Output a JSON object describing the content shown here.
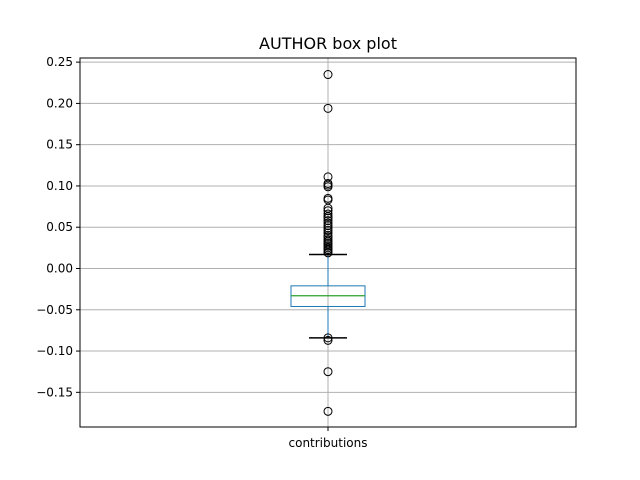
{
  "chart_data": {
    "type": "box",
    "title": "AUTHOR box plot",
    "xlabel": "",
    "ylabel": "",
    "categories": [
      "contributions"
    ],
    "ylim": [
      -0.192,
      0.255
    ],
    "yticks": [
      -0.15,
      -0.1,
      -0.05,
      0.0,
      0.05,
      0.1,
      0.15,
      0.2,
      0.25
    ],
    "ytick_labels": [
      "−0.15",
      "−0.10",
      "−0.05",
      "0.00",
      "0.05",
      "0.10",
      "0.15",
      "0.20",
      "0.25"
    ],
    "grid": true,
    "box": {
      "whisker_low": -0.084,
      "q1": -0.046,
      "median": -0.033,
      "q3": -0.021,
      "whisker_high": 0.017
    },
    "outliers": [
      0.235,
      0.194,
      0.111,
      0.103,
      0.101,
      0.099,
      0.085,
      0.083,
      0.073,
      0.07,
      0.066,
      0.063,
      0.061,
      0.058,
      0.055,
      0.052,
      0.049,
      0.046,
      0.043,
      0.04,
      0.038,
      0.035,
      0.033,
      0.031,
      0.029,
      0.027,
      0.025,
      0.023,
      0.021,
      0.019,
      -0.084,
      -0.087,
      -0.125,
      -0.173
    ],
    "colors": {
      "box": "#1f77b4",
      "median": "#2ca02c",
      "whisker": "#000000",
      "outlier_edge": "#000000",
      "grid": "#b0b0b0"
    }
  }
}
